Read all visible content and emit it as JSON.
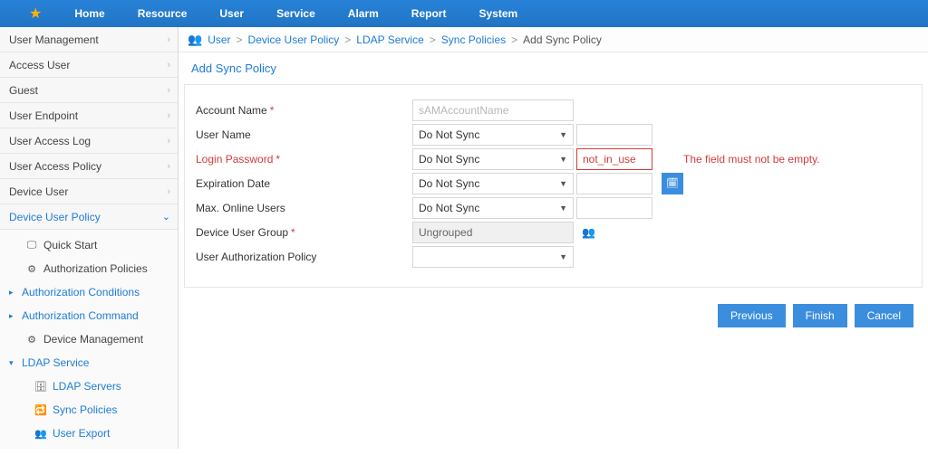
{
  "topnav": [
    "Home",
    "Resource",
    "User",
    "Service",
    "Alarm",
    "Report",
    "System"
  ],
  "sidebar": {
    "items": [
      {
        "label": "User Management"
      },
      {
        "label": "Access User"
      },
      {
        "label": "Guest"
      },
      {
        "label": "User Endpoint"
      },
      {
        "label": "User Access Log"
      },
      {
        "label": "User Access Policy"
      },
      {
        "label": "Device User"
      },
      {
        "label": "Device User Policy"
      }
    ],
    "sub": {
      "quick_start": "Quick Start",
      "auth_policies": "Authorization Policies",
      "auth_conditions": "Authorization Conditions",
      "auth_command": "Authorization Command",
      "device_mgmt": "Device Management",
      "ldap_service": "LDAP Service",
      "ldap_servers": "LDAP Servers",
      "sync_policies": "Sync Policies",
      "user_export": "User Export"
    }
  },
  "breadcrumb": {
    "root": "User",
    "p1": "Device User Policy",
    "p2": "LDAP Service",
    "p3": "Sync Policies",
    "current": "Add Sync Policy"
  },
  "page_title": "Add Sync Policy",
  "form": {
    "account_name": {
      "label": "Account Name",
      "placeholder": "sAMAccountName"
    },
    "user_name": {
      "label": "User Name",
      "selected": "Do Not Sync"
    },
    "login_password": {
      "label": "Login Password",
      "selected": "Do Not Sync",
      "value": "not_in_use",
      "error": "The field must not be empty."
    },
    "expiration_date": {
      "label": "Expiration Date",
      "selected": "Do Not Sync"
    },
    "max_online": {
      "label": "Max. Online Users",
      "selected": "Do Not Sync"
    },
    "device_group": {
      "label": "Device User Group",
      "selected": "Ungrouped"
    },
    "user_auth_policy": {
      "label": "User Authorization Policy",
      "selected": ""
    }
  },
  "buttons": {
    "previous": "Previous",
    "finish": "Finish",
    "cancel": "Cancel"
  }
}
